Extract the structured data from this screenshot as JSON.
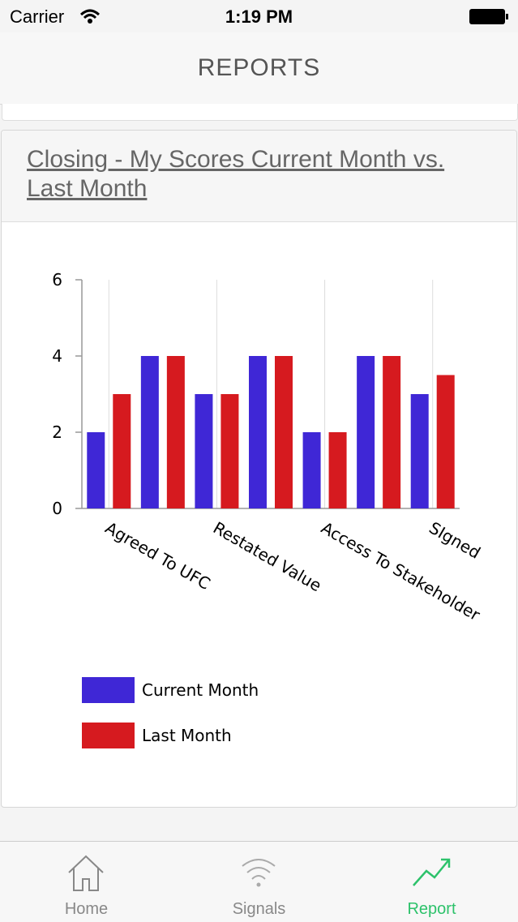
{
  "status_bar": {
    "carrier": "Carrier",
    "time": "1:19 PM"
  },
  "nav": {
    "title": "REPORTS"
  },
  "card": {
    "title": "Closing - My Scores Current Month vs. Last Month"
  },
  "chart_data": {
    "type": "bar",
    "categories": [
      "Agreed To UFC",
      null,
      "Restated Value",
      null,
      "Access To Stakeholder",
      null,
      "SIgned"
    ],
    "series": [
      {
        "name": "Current Month",
        "color": "#3f27d6",
        "values": [
          2,
          4,
          3,
          4,
          2,
          4,
          3
        ]
      },
      {
        "name": "Last Month",
        "color": "#d61a1f",
        "values": [
          3,
          4,
          3,
          4,
          2,
          4,
          3.5
        ]
      }
    ],
    "ylim": [
      0,
      6
    ],
    "yticks": [
      0,
      2,
      4,
      6
    ],
    "grid": true
  },
  "tabs": [
    {
      "label": "Home"
    },
    {
      "label": "Signals"
    },
    {
      "label": "Report",
      "active": true
    }
  ]
}
